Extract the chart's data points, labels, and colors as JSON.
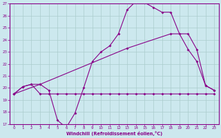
{
  "xlabel": "Windchill (Refroidissement éolien,°C)",
  "bg_color": "#cce8ee",
  "grid_color": "#aacccc",
  "line_color": "#880088",
  "xlim": [
    -0.5,
    23.5
  ],
  "ylim": [
    17,
    27
  ],
  "xticks": [
    0,
    1,
    2,
    3,
    4,
    5,
    6,
    7,
    8,
    9,
    10,
    11,
    12,
    13,
    14,
    15,
    16,
    17,
    18,
    19,
    20,
    21,
    22,
    23
  ],
  "yticks": [
    17,
    18,
    19,
    20,
    21,
    22,
    23,
    24,
    25,
    26,
    27
  ],
  "line1_x": [
    0,
    1,
    2,
    3,
    4,
    5,
    6,
    7,
    8,
    9,
    10,
    11,
    12,
    13,
    14,
    15,
    16,
    17,
    18,
    19,
    20,
    21,
    22,
    23
  ],
  "line1_y": [
    19.5,
    20.1,
    20.3,
    19.5,
    19.5,
    19.5,
    19.5,
    19.5,
    19.5,
    19.5,
    19.5,
    19.5,
    19.5,
    19.5,
    19.5,
    19.5,
    19.5,
    19.5,
    19.5,
    19.5,
    19.5,
    19.5,
    19.5,
    19.5
  ],
  "line2_x": [
    0,
    1,
    2,
    3,
    4,
    5,
    6,
    7,
    8,
    9,
    10,
    11,
    12,
    13,
    14,
    15,
    16,
    17,
    18,
    19,
    20,
    21,
    22,
    23
  ],
  "line2_y": [
    19.5,
    20.1,
    20.3,
    20.3,
    19.8,
    17.3,
    16.7,
    17.9,
    20.0,
    22.2,
    23.0,
    23.5,
    24.5,
    26.5,
    27.2,
    27.1,
    26.7,
    26.3,
    26.3,
    24.5,
    23.2,
    22.2,
    20.2,
    19.8
  ],
  "line3_x": [
    0,
    3,
    13,
    18,
    20,
    21,
    22,
    23
  ],
  "line3_y": [
    19.5,
    20.3,
    23.3,
    24.5,
    24.5,
    23.2,
    20.2,
    19.8
  ]
}
